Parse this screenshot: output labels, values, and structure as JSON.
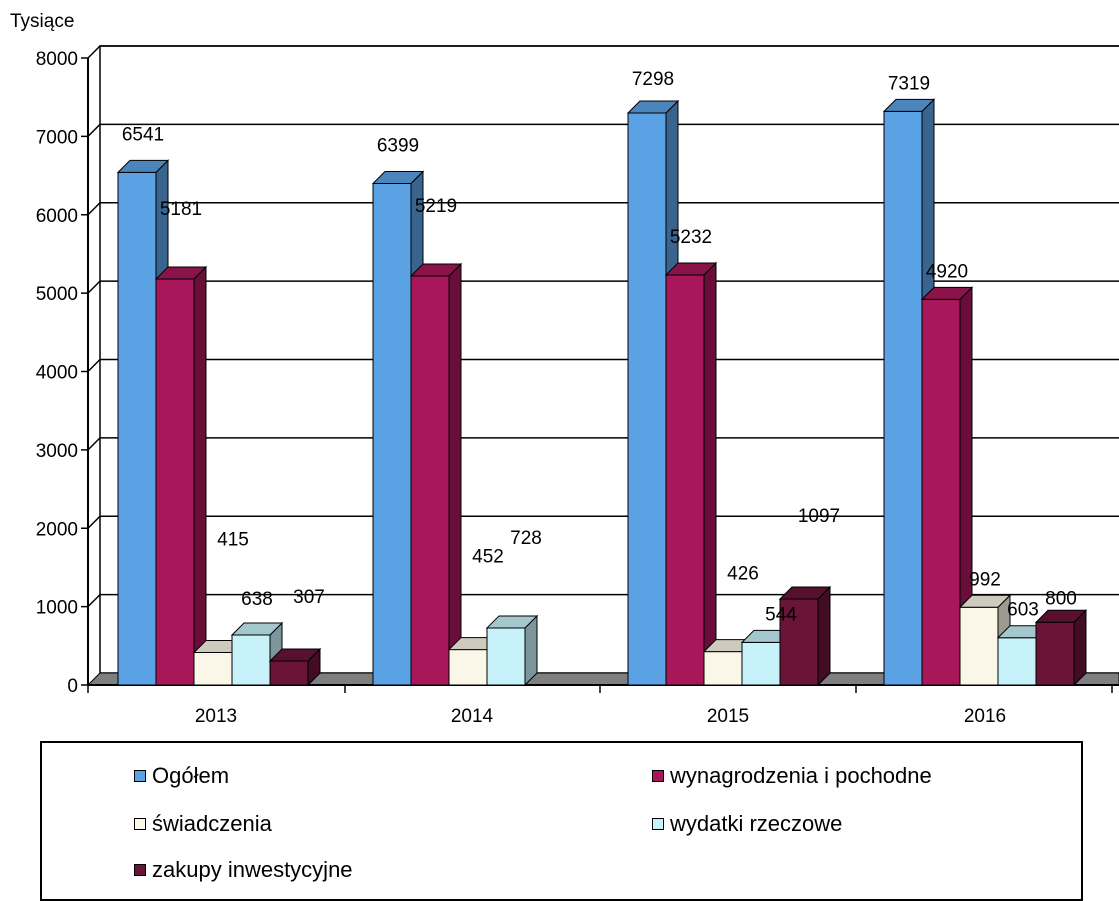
{
  "chart_data": {
    "type": "bar",
    "ylabel": "Tysiące",
    "ylim": [
      0,
      8000
    ],
    "yticks": [
      0,
      1000,
      2000,
      3000,
      4000,
      5000,
      6000,
      7000,
      8000
    ],
    "grid": true,
    "legend_position": "bottom",
    "categories": [
      "2013",
      "2014",
      "2015",
      "2016"
    ],
    "series": [
      {
        "name": "Ogółem",
        "color": "#5aa2e4",
        "values": [
          6541,
          6399,
          7298,
          7319
        ]
      },
      {
        "name": "wynagrodzenia i pochodne",
        "color": "#a8175a",
        "values": [
          5181,
          5219,
          5232,
          4920
        ]
      },
      {
        "name": "świadczenia",
        "color": "#fbf7e8",
        "values": [
          415,
          452,
          426,
          992
        ]
      },
      {
        "name": "wydatki rzeczowe",
        "color": "#c8f2fa",
        "values": [
          638,
          728,
          544,
          603
        ]
      },
      {
        "name": "zakupy inwestycyjne",
        "color": "#6a1437",
        "values": [
          307,
          null,
          1097,
          800
        ]
      }
    ]
  }
}
